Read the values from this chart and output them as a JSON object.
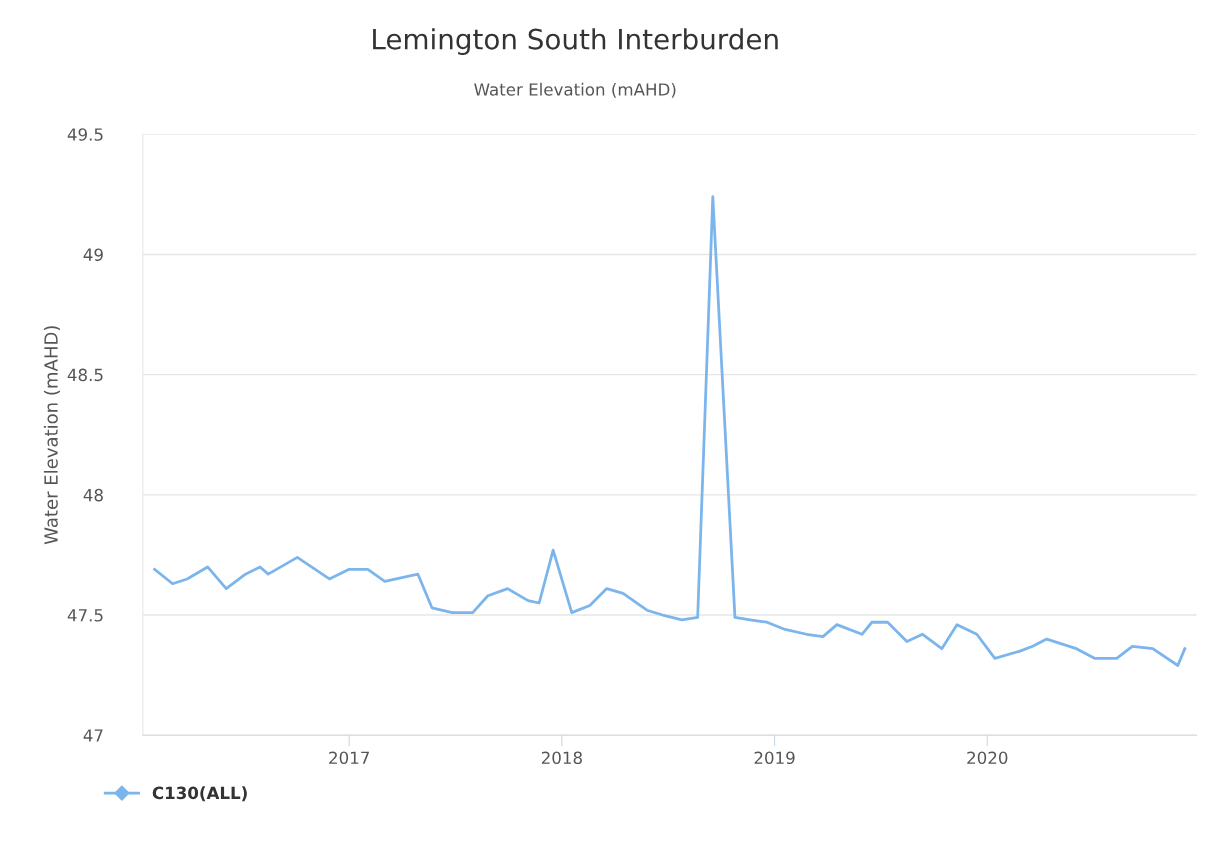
{
  "chart_data": {
    "type": "line",
    "title": "Lemington South Interburden",
    "subtitle": "Water Elevation (mAHD)",
    "ylabel": "Water Elevation (mAHD)",
    "x": [
      "2016-02-02",
      "2016-03-04",
      "2016-03-29",
      "2016-05-03",
      "2016-06-04",
      "2016-07-07",
      "2016-08-01",
      "2016-08-15",
      "2016-10-04",
      "2016-11-28",
      "2017-01-01",
      "2017-02-02",
      "2017-03-03",
      "2017-04-29",
      "2017-05-23",
      "2017-06-27",
      "2017-08-01",
      "2017-08-27",
      "2017-09-30",
      "2017-11-04",
      "2017-11-23",
      "2017-12-17",
      "2018-01-18",
      "2018-02-18",
      "2018-03-19",
      "2018-04-16",
      "2018-05-27",
      "2018-06-23",
      "2018-07-26",
      "2018-08-22",
      "2018-09-17",
      "2018-10-25",
      "2018-11-20",
      "2018-12-19",
      "2019-01-19",
      "2019-02-25",
      "2019-03-25",
      "2019-04-18",
      "2019-05-31",
      "2019-06-17",
      "2019-07-14",
      "2019-08-16",
      "2019-09-12",
      "2019-10-15",
      "2019-11-10",
      "2019-12-14",
      "2020-01-14",
      "2020-02-26",
      "2020-03-19",
      "2020-04-12",
      "2020-06-02",
      "2020-07-03",
      "2020-08-10",
      "2020-09-06",
      "2020-10-11",
      "2020-11-23",
      "2020-12-05"
    ],
    "series": [
      {
        "name": "C130(ALL)",
        "color": "#7cb5ec",
        "values": [
          47.69,
          47.63,
          47.65,
          47.7,
          47.61,
          47.67,
          47.7,
          47.67,
          47.74,
          47.65,
          47.69,
          47.69,
          47.64,
          47.67,
          47.53,
          47.51,
          47.51,
          47.58,
          47.61,
          47.56,
          47.55,
          47.77,
          47.51,
          47.54,
          47.61,
          47.59,
          47.52,
          47.5,
          47.48,
          47.49,
          49.24,
          47.49,
          47.48,
          47.47,
          47.44,
          47.42,
          47.41,
          47.46,
          47.42,
          47.47,
          47.47,
          47.39,
          47.42,
          47.36,
          47.46,
          47.42,
          47.32,
          47.35,
          47.37,
          47.4,
          47.36,
          47.32,
          47.32,
          47.37,
          47.36,
          47.29,
          47.36
        ]
      }
    ],
    "xlim": [
      "2016-01-13",
      "2020-12-25"
    ],
    "xticks": [
      {
        "value": "2017-01-01",
        "label": "2017"
      },
      {
        "value": "2018-01-01",
        "label": "2018"
      },
      {
        "value": "2019-01-01",
        "label": "2019"
      },
      {
        "value": "2020-01-01",
        "label": "2020"
      }
    ],
    "ylim": [
      47,
      49.5
    ],
    "yticks": [
      47,
      47.5,
      48,
      48.5,
      49,
      49.5
    ],
    "grid": "y",
    "legend": "bottom left",
    "marker": "none",
    "line_style": "solid"
  }
}
